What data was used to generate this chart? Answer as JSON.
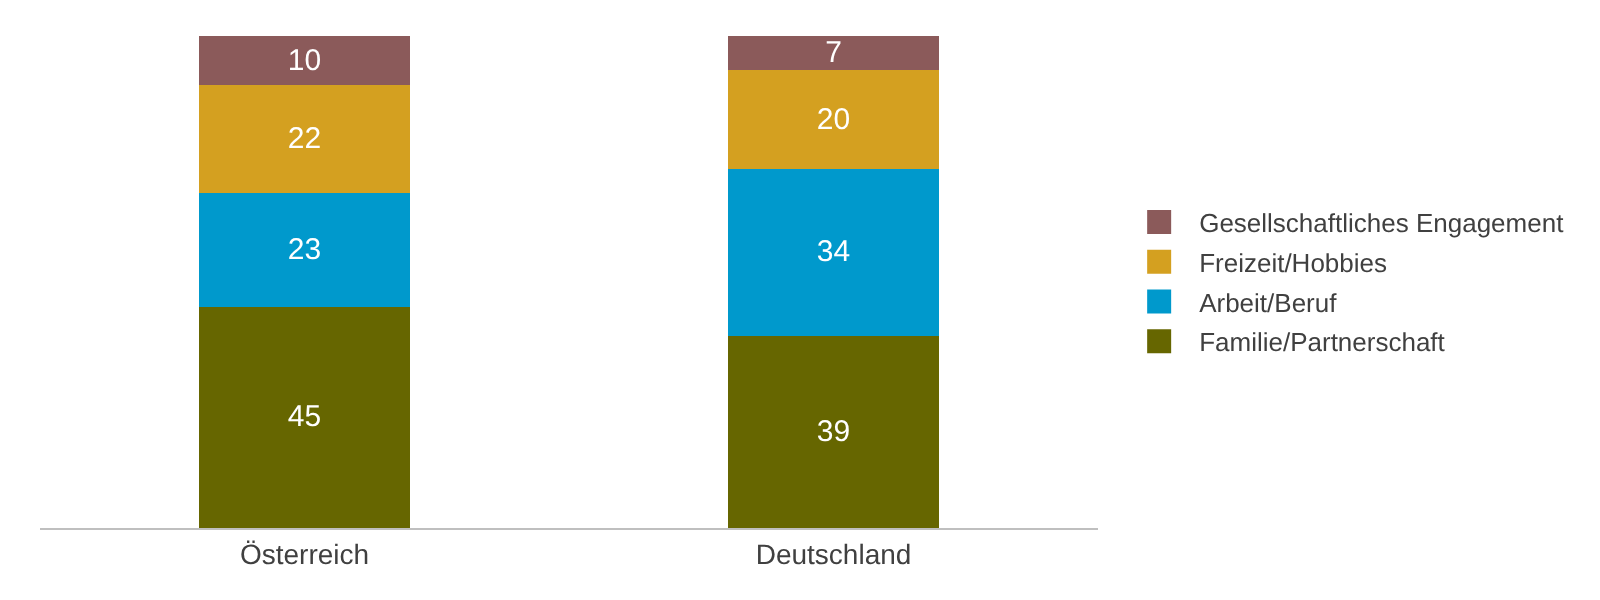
{
  "chart_data": {
    "type": "bar",
    "stacked": true,
    "data_labels": true,
    "legend": "right",
    "categories": [
      "Österreich",
      "Deutschland"
    ],
    "series": [
      {
        "name": "Familie/Partnerschaft",
        "color": "#666600",
        "values": [
          45,
          39
        ]
      },
      {
        "name": "Arbeit/Beruf",
        "color": "#0099cc",
        "values": [
          23,
          34
        ]
      },
      {
        "name": "Freizeit/Hobbies",
        "color": "#d4a020",
        "values": [
          22,
          20
        ]
      },
      {
        "name": "Gesellschaftliches Engagement",
        "color": "#8b5a5a",
        "values": [
          10,
          7
        ]
      }
    ]
  }
}
